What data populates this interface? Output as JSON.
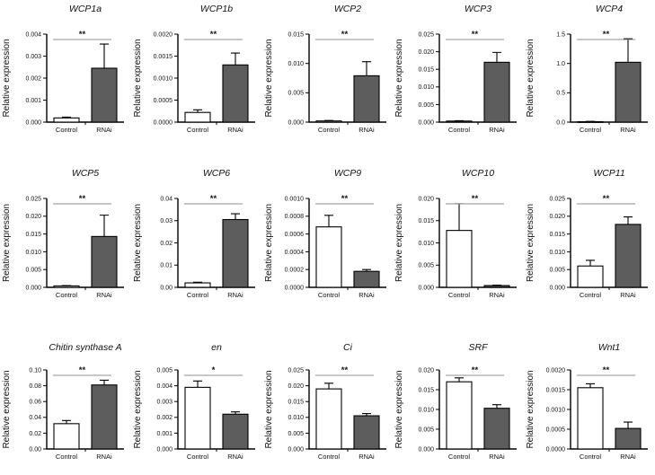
{
  "figure": {
    "ylabel": "Relative expression",
    "categories": [
      "Control",
      "RNAi"
    ],
    "colors": {
      "background": "#ffffff",
      "control_fill": "#ffffff",
      "rnai_fill": "#5d5d5d",
      "bar_stroke": "#000000",
      "axis": "#000000",
      "error_bar": "#000000",
      "sig_line": "#8f8f8f",
      "text": "#111111"
    }
  },
  "chart_data": [
    {
      "type": "bar",
      "title": "WCP1a",
      "ylabel": "Relative expression",
      "categories": [
        "Control",
        "RNAi"
      ],
      "values": [
        0.00019,
        0.00245
      ],
      "errors": [
        4e-05,
        0.0011
      ],
      "ylim": [
        0,
        0.004
      ],
      "ystep": 0.001,
      "tick_decimals": 3,
      "significance": "**"
    },
    {
      "type": "bar",
      "title": "WCP1b",
      "ylabel": "Relative expression",
      "categories": [
        "Control",
        "RNAi"
      ],
      "values": [
        0.00022,
        0.0013
      ],
      "errors": [
        6e-05,
        0.00027
      ],
      "ylim": [
        0,
        0.002
      ],
      "ystep": 0.0005,
      "tick_decimals": 4,
      "significance": "**"
    },
    {
      "type": "bar",
      "title": "WCP2",
      "ylabel": "Relative expression",
      "categories": [
        "Control",
        "RNAi"
      ],
      "values": [
        0.0002,
        0.0079
      ],
      "errors": [
        8e-05,
        0.0024
      ],
      "ylim": [
        0,
        0.015
      ],
      "ystep": 0.005,
      "tick_decimals": 3,
      "significance": "**"
    },
    {
      "type": "bar",
      "title": "WCP3",
      "ylabel": "Relative expression",
      "categories": [
        "Control",
        "RNAi"
      ],
      "values": [
        0.0003,
        0.017
      ],
      "errors": [
        0.0001,
        0.0028
      ],
      "ylim": [
        0,
        0.025
      ],
      "ystep": 0.005,
      "tick_decimals": 3,
      "significance": "**"
    },
    {
      "type": "bar",
      "title": "WCP4",
      "ylabel": "Relative expression",
      "categories": [
        "Control",
        "RNAi"
      ],
      "values": [
        0.008,
        1.02
      ],
      "errors": [
        0.004,
        0.4
      ],
      "ylim": [
        0,
        1.5
      ],
      "ystep": 0.5,
      "tick_decimals": 1,
      "significance": "**"
    },
    {
      "type": "bar",
      "title": "WCP5",
      "ylabel": "Relative expression",
      "categories": [
        "Control",
        "RNAi"
      ],
      "values": [
        0.0004,
        0.0143
      ],
      "errors": [
        0.0001,
        0.006
      ],
      "ylim": [
        0,
        0.025
      ],
      "ystep": 0.005,
      "tick_decimals": 3,
      "significance": "**"
    },
    {
      "type": "bar",
      "title": "WCP6",
      "ylabel": "Relative expression",
      "categories": [
        "Control",
        "RNAi"
      ],
      "values": [
        0.002,
        0.0305
      ],
      "errors": [
        0.0003,
        0.0026
      ],
      "ylim": [
        0,
        0.04
      ],
      "ystep": 0.01,
      "tick_decimals": 2,
      "significance": "**"
    },
    {
      "type": "bar",
      "title": "WCP9",
      "ylabel": "Relative expression",
      "categories": [
        "Control",
        "RNAi"
      ],
      "values": [
        0.00068,
        0.00018
      ],
      "errors": [
        0.00013,
        2e-05
      ],
      "ylim": [
        0,
        0.001
      ],
      "ystep": 0.0002,
      "tick_decimals": 4,
      "significance": "**"
    },
    {
      "type": "bar",
      "title": "WCP10",
      "ylabel": "Relative expression",
      "categories": [
        "Control",
        "RNAi"
      ],
      "values": [
        0.0128,
        0.0004
      ],
      "errors": [
        0.006,
        0.0001
      ],
      "ylim": [
        0,
        0.02
      ],
      "ystep": 0.005,
      "tick_decimals": 3,
      "significance": "**"
    },
    {
      "type": "bar",
      "title": "WCP11",
      "ylabel": "Relative expression",
      "categories": [
        "Control",
        "RNAi"
      ],
      "values": [
        0.006,
        0.0177
      ],
      "errors": [
        0.0016,
        0.0021
      ],
      "ylim": [
        0,
        0.025
      ],
      "ystep": 0.005,
      "tick_decimals": 3,
      "significance": "**"
    },
    {
      "type": "bar",
      "title": "Chitin synthase A",
      "ylabel": "Relative expression",
      "categories": [
        "Control",
        "RNAi"
      ],
      "values": [
        0.032,
        0.081
      ],
      "errors": [
        0.004,
        0.006
      ],
      "ylim": [
        0,
        0.1
      ],
      "ystep": 0.02,
      "tick_decimals": 2,
      "significance": "**"
    },
    {
      "type": "bar",
      "title": "en",
      "ylabel": "Relative expression",
      "categories": [
        "Control",
        "RNAi"
      ],
      "values": [
        0.0039,
        0.0022
      ],
      "errors": [
        0.0004,
        0.00015
      ],
      "ylim": [
        0,
        0.005
      ],
      "ystep": 0.001,
      "tick_decimals": 3,
      "significance": "*"
    },
    {
      "type": "bar",
      "title": "Ci",
      "ylabel": "Relative expression",
      "categories": [
        "Control",
        "RNAi"
      ],
      "values": [
        0.019,
        0.0105
      ],
      "errors": [
        0.0018,
        0.0007
      ],
      "ylim": [
        0,
        0.025
      ],
      "ystep": 0.005,
      "tick_decimals": 3,
      "significance": "**"
    },
    {
      "type": "bar",
      "title": "SRF",
      "ylabel": "Relative expression",
      "categories": [
        "Control",
        "RNAi"
      ],
      "values": [
        0.017,
        0.0103
      ],
      "errors": [
        0.001,
        0.0009
      ],
      "ylim": [
        0,
        0.02
      ],
      "ystep": 0.005,
      "tick_decimals": 3,
      "significance": "**"
    },
    {
      "type": "bar",
      "title": "Wnt1",
      "ylabel": "Relative expression",
      "categories": [
        "Control",
        "RNAi"
      ],
      "values": [
        0.00155,
        0.00052
      ],
      "errors": [
        0.0001,
        0.00016
      ],
      "ylim": [
        0,
        0.002
      ],
      "ystep": 0.0005,
      "tick_decimals": 4,
      "significance": "**"
    }
  ]
}
